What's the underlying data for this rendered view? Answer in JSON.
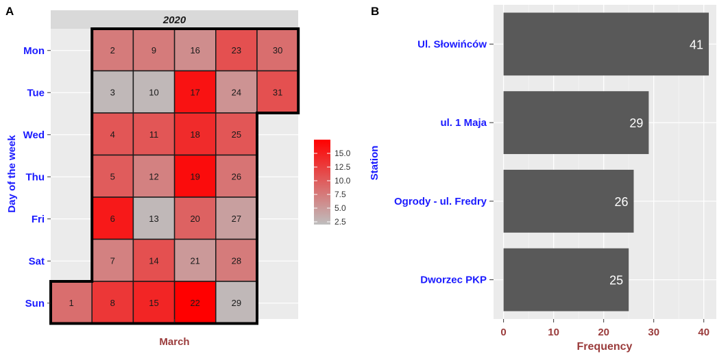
{
  "panels": {
    "left_tag": "A",
    "right_tag": "B"
  },
  "chart_data": [
    {
      "type": "heatmap",
      "strip_title": "2020",
      "xlabel": "March",
      "ylabel": "Day of the week",
      "days": [
        "Mon",
        "Tue",
        "Wed",
        "Thu",
        "Fri",
        "Sat",
        "Sun"
      ],
      "week_columns": 6,
      "cells": [
        {
          "date": "1",
          "week": 0,
          "day": 6,
          "value": 8.5
        },
        {
          "date": "2",
          "week": 1,
          "day": 0,
          "value": 7.5
        },
        {
          "date": "3",
          "week": 1,
          "day": 1,
          "value": 2.5
        },
        {
          "date": "4",
          "week": 1,
          "day": 2,
          "value": 10.5
        },
        {
          "date": "5",
          "week": 1,
          "day": 3,
          "value": 10
        },
        {
          "date": "6",
          "week": 1,
          "day": 4,
          "value": 15.5
        },
        {
          "date": "7",
          "week": 1,
          "day": 5,
          "value": 7
        },
        {
          "date": "8",
          "week": 1,
          "day": 6,
          "value": 13
        },
        {
          "date": "9",
          "week": 2,
          "day": 0,
          "value": 7.5
        },
        {
          "date": "10",
          "week": 2,
          "day": 1,
          "value": 2.5
        },
        {
          "date": "11",
          "week": 2,
          "day": 2,
          "value": 10.5
        },
        {
          "date": "12",
          "week": 2,
          "day": 3,
          "value": 7
        },
        {
          "date": "13",
          "week": 2,
          "day": 4,
          "value": 2.5
        },
        {
          "date": "14",
          "week": 2,
          "day": 5,
          "value": 11
        },
        {
          "date": "15",
          "week": 2,
          "day": 6,
          "value": 14.5
        },
        {
          "date": "16",
          "week": 3,
          "day": 0,
          "value": 6
        },
        {
          "date": "17",
          "week": 3,
          "day": 1,
          "value": 16
        },
        {
          "date": "18",
          "week": 3,
          "day": 2,
          "value": 14
        },
        {
          "date": "19",
          "week": 3,
          "day": 3,
          "value": 16.5
        },
        {
          "date": "20",
          "week": 3,
          "day": 4,
          "value": 9.5
        },
        {
          "date": "21",
          "week": 3,
          "day": 5,
          "value": 5
        },
        {
          "date": "22",
          "week": 3,
          "day": 6,
          "value": 18
        },
        {
          "date": "23",
          "week": 4,
          "day": 0,
          "value": 11
        },
        {
          "date": "24",
          "week": 4,
          "day": 1,
          "value": 5.5
        },
        {
          "date": "25",
          "week": 4,
          "day": 2,
          "value": 10.5
        },
        {
          "date": "26",
          "week": 4,
          "day": 3,
          "value": 8
        },
        {
          "date": "27",
          "week": 4,
          "day": 4,
          "value": 4.5
        },
        {
          "date": "28",
          "week": 4,
          "day": 5,
          "value": 7.5
        },
        {
          "date": "29",
          "week": 4,
          "day": 6,
          "value": 2.5
        },
        {
          "date": "30",
          "week": 5,
          "day": 0,
          "value": 8.5
        },
        {
          "date": "31",
          "week": 5,
          "day": 1,
          "value": 11
        }
      ],
      "legend": {
        "ticks": [
          "15.0",
          "12.5",
          "10.0",
          "7.5",
          "5.0",
          "2.5"
        ],
        "tick_values": [
          15,
          12.5,
          10,
          7.5,
          5,
          2.5
        ],
        "range": [
          2,
          17.5
        ],
        "colors": {
          "low": "#bebebe",
          "high": "#ff0000"
        }
      }
    },
    {
      "type": "bar",
      "orientation": "horizontal",
      "categories": [
        "Ul. Słowińców",
        "ul. 1 Maja",
        "Ogrody - ul. Fredry",
        "Dworzec PKP"
      ],
      "values": [
        41,
        29,
        26,
        25
      ],
      "value_labels": [
        "41",
        "29",
        "26",
        "25"
      ],
      "xlabel": "Frequency",
      "ylabel": "Station",
      "xlim": [
        -2,
        42.5
      ],
      "xticks": [
        "0",
        "10",
        "20",
        "30",
        "40"
      ],
      "xtick_values": [
        0,
        10,
        20,
        30,
        40
      ],
      "bar_color": "#595959",
      "grid": true
    }
  ]
}
